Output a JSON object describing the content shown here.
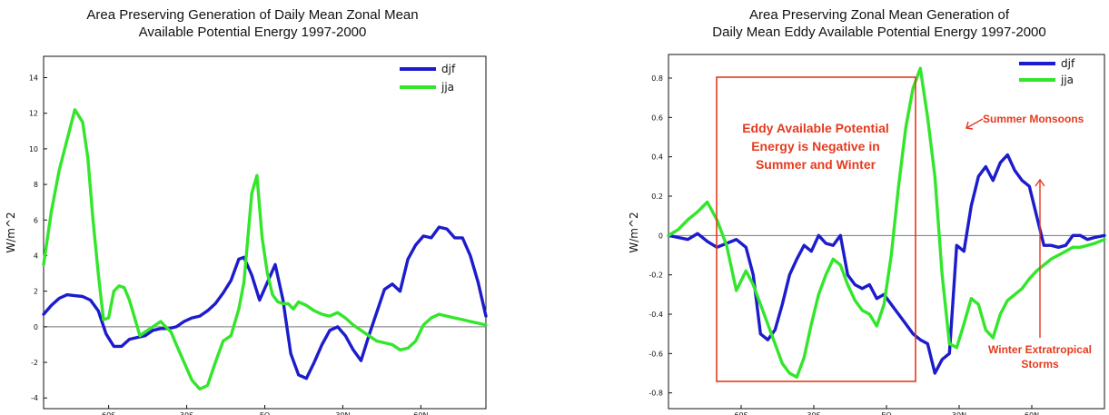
{
  "chart_data": [
    {
      "type": "line",
      "title": "Area Preserving Generation of Daily Mean Zonal Mean",
      "subtitle": "Available Potential Energy 1997-2000",
      "ylabel": "W/m^2",
      "ylim": [
        -4.6,
        15.2
      ],
      "xlim": [
        -85,
        85
      ],
      "yticks": [
        -4,
        -2,
        0,
        2,
        4,
        6,
        8,
        10,
        12,
        14
      ],
      "xticks": [
        {
          "value": -60,
          "label": "60S"
        },
        {
          "value": -30,
          "label": "30S"
        },
        {
          "value": 0,
          "label": "EQ"
        },
        {
          "value": 30,
          "label": "30N"
        },
        {
          "value": 60,
          "label": "60N"
        }
      ],
      "legend_position": "top-right",
      "series": [
        {
          "name": "djf",
          "color": "#1c1ccc",
          "x": [
            -85,
            -82,
            -79,
            -76,
            -73,
            -70,
            -67,
            -64,
            -61,
            -58,
            -55,
            -52,
            -49,
            -46,
            -43,
            -40,
            -37,
            -34,
            -31,
            -28,
            -25,
            -22,
            -19,
            -16,
            -13,
            -10,
            -8,
            -5,
            -2,
            1,
            4,
            7,
            10,
            13,
            16,
            19,
            22,
            25,
            28,
            31,
            34,
            37,
            40,
            43,
            46,
            49,
            52,
            55,
            58,
            61,
            64,
            67,
            70,
            73,
            76,
            79,
            82,
            85
          ],
          "values": [
            0.7,
            1.2,
            1.6,
            1.8,
            1.75,
            1.7,
            1.5,
            0.9,
            -0.4,
            -1.1,
            -1.1,
            -0.7,
            -0.6,
            -0.5,
            -0.2,
            -0.1,
            -0.1,
            0.0,
            0.3,
            0.5,
            0.6,
            0.9,
            1.3,
            1.9,
            2.6,
            3.8,
            3.9,
            2.9,
            1.5,
            2.5,
            3.5,
            1.5,
            -1.5,
            -2.7,
            -2.9,
            -2.0,
            -1.0,
            -0.2,
            0.0,
            -0.5,
            -1.3,
            -1.9,
            -0.5,
            0.8,
            2.1,
            2.4,
            2.0,
            3.8,
            4.6,
            5.1,
            5.0,
            5.6,
            5.5,
            5.0,
            5.0,
            4.0,
            2.5,
            0.6
          ]
        },
        {
          "name": "jja",
          "color": "#33e62b",
          "x": [
            -85,
            -82,
            -79,
            -76,
            -73,
            -70,
            -68,
            -66,
            -64,
            -62,
            -60,
            -58,
            -56,
            -54,
            -52,
            -50,
            -48,
            -46,
            -44,
            -42,
            -40,
            -38,
            -36,
            -34,
            -31,
            -28,
            -25,
            -22,
            -19,
            -16,
            -13,
            -10,
            -8,
            -5,
            -3,
            -1,
            1,
            3,
            5,
            7,
            9,
            11,
            13,
            16,
            19,
            22,
            25,
            28,
            31,
            34,
            37,
            40,
            43,
            46,
            49,
            52,
            55,
            58,
            61,
            64,
            67,
            70,
            73,
            76,
            79,
            82,
            85
          ],
          "values": [
            3.5,
            6.5,
            8.8,
            10.5,
            12.2,
            11.5,
            9.5,
            6.0,
            3.0,
            0.4,
            0.5,
            2.0,
            2.3,
            2.2,
            1.5,
            0.5,
            -0.5,
            -0.3,
            -0.1,
            0.1,
            0.3,
            0.0,
            -0.3,
            -1.0,
            -2.0,
            -3.0,
            -3.5,
            -3.3,
            -2.0,
            -0.8,
            -0.5,
            1.0,
            2.5,
            7.5,
            8.5,
            5.0,
            3.0,
            1.8,
            1.4,
            1.3,
            1.3,
            1.0,
            1.4,
            1.2,
            0.9,
            0.7,
            0.6,
            0.8,
            0.5,
            0.1,
            -0.2,
            -0.5,
            -0.8,
            -0.9,
            -1.0,
            -1.3,
            -1.2,
            -0.8,
            0.1,
            0.5,
            0.7,
            0.6,
            0.5,
            0.4,
            0.3,
            0.2,
            0.1
          ]
        }
      ]
    },
    {
      "type": "line",
      "title": "Area Preserving Zonal Mean Generation of",
      "subtitle": "Daily Mean Eddy Available Potential Energy 1997-2000",
      "ylabel": "W/m^2",
      "ylim": [
        -0.88,
        0.92
      ],
      "xlim": [
        -90,
        90
      ],
      "yticks": [
        -0.8,
        -0.6,
        -0.4,
        -0.2,
        0,
        0.2,
        0.4,
        0.6,
        0.8
      ],
      "xticks": [
        {
          "value": -60,
          "label": "60S"
        },
        {
          "value": -30,
          "label": "30S"
        },
        {
          "value": 0,
          "label": "EQ"
        },
        {
          "value": 30,
          "label": "30N"
        },
        {
          "value": 60,
          "label": "60N"
        }
      ],
      "legend_position": "top-right",
      "series": [
        {
          "name": "djf",
          "color": "#1c1ccc",
          "x": [
            -90,
            -86,
            -82,
            -78,
            -74,
            -70,
            -66,
            -62,
            -58,
            -55,
            -52,
            -49,
            -46,
            -43,
            -40,
            -37,
            -34,
            -31,
            -28,
            -25,
            -22,
            -19,
            -16,
            -13,
            -10,
            -7,
            -4,
            -1,
            2,
            5,
            8,
            11,
            14,
            17,
            20,
            23,
            26,
            29,
            32,
            35,
            38,
            41,
            44,
            47,
            50,
            53,
            56,
            59,
            62,
            65,
            68,
            71,
            74,
            77,
            80,
            83,
            86,
            90
          ],
          "values": [
            0.0,
            -0.01,
            -0.02,
            0.01,
            -0.03,
            -0.06,
            -0.04,
            -0.02,
            -0.06,
            -0.2,
            -0.5,
            -0.53,
            -0.48,
            -0.35,
            -0.2,
            -0.12,
            -0.05,
            -0.08,
            0.0,
            -0.04,
            -0.05,
            0.0,
            -0.2,
            -0.25,
            -0.27,
            -0.25,
            -0.32,
            -0.3,
            -0.35,
            -0.4,
            -0.45,
            -0.5,
            -0.53,
            -0.55,
            -0.7,
            -0.63,
            -0.6,
            -0.05,
            -0.08,
            0.15,
            0.3,
            0.35,
            0.28,
            0.37,
            0.41,
            0.33,
            0.28,
            0.25,
            0.1,
            -0.05,
            -0.05,
            -0.06,
            -0.05,
            0.0,
            0.0,
            -0.02,
            -0.01,
            0.0
          ]
        },
        {
          "name": "jja",
          "color": "#33e62b",
          "x": [
            -90,
            -86,
            -82,
            -78,
            -74,
            -70,
            -66,
            -62,
            -58,
            -55,
            -52,
            -49,
            -46,
            -43,
            -40,
            -37,
            -34,
            -31,
            -28,
            -25,
            -22,
            -19,
            -16,
            -13,
            -10,
            -7,
            -4,
            -1,
            2,
            5,
            8,
            11,
            14,
            17,
            20,
            23,
            26,
            29,
            32,
            35,
            38,
            41,
            44,
            47,
            50,
            53,
            56,
            59,
            62,
            65,
            68,
            71,
            74,
            77,
            80,
            83,
            86,
            90
          ],
          "values": [
            0.0,
            0.03,
            0.08,
            0.12,
            0.17,
            0.08,
            -0.05,
            -0.28,
            -0.18,
            -0.25,
            -0.35,
            -0.45,
            -0.55,
            -0.65,
            -0.7,
            -0.72,
            -0.62,
            -0.45,
            -0.3,
            -0.2,
            -0.12,
            -0.15,
            -0.25,
            -0.33,
            -0.38,
            -0.4,
            -0.46,
            -0.35,
            -0.1,
            0.25,
            0.55,
            0.75,
            0.85,
            0.6,
            0.3,
            -0.2,
            -0.55,
            -0.57,
            -0.45,
            -0.32,
            -0.35,
            -0.48,
            -0.52,
            -0.4,
            -0.33,
            -0.3,
            -0.27,
            -0.22,
            -0.18,
            -0.15,
            -0.12,
            -0.1,
            -0.08,
            -0.06,
            -0.06,
            -0.05,
            -0.04,
            -0.02
          ]
        }
      ],
      "annotations": {
        "box_text": [
          "Eddy Available Potential",
          "Energy is Negative in",
          "Summer and Winter"
        ],
        "monsoon_text": "Summer Monsoons",
        "storms_text": [
          "Winter Extratropical",
          "Storms"
        ],
        "color": "#e53a1e"
      }
    }
  ]
}
